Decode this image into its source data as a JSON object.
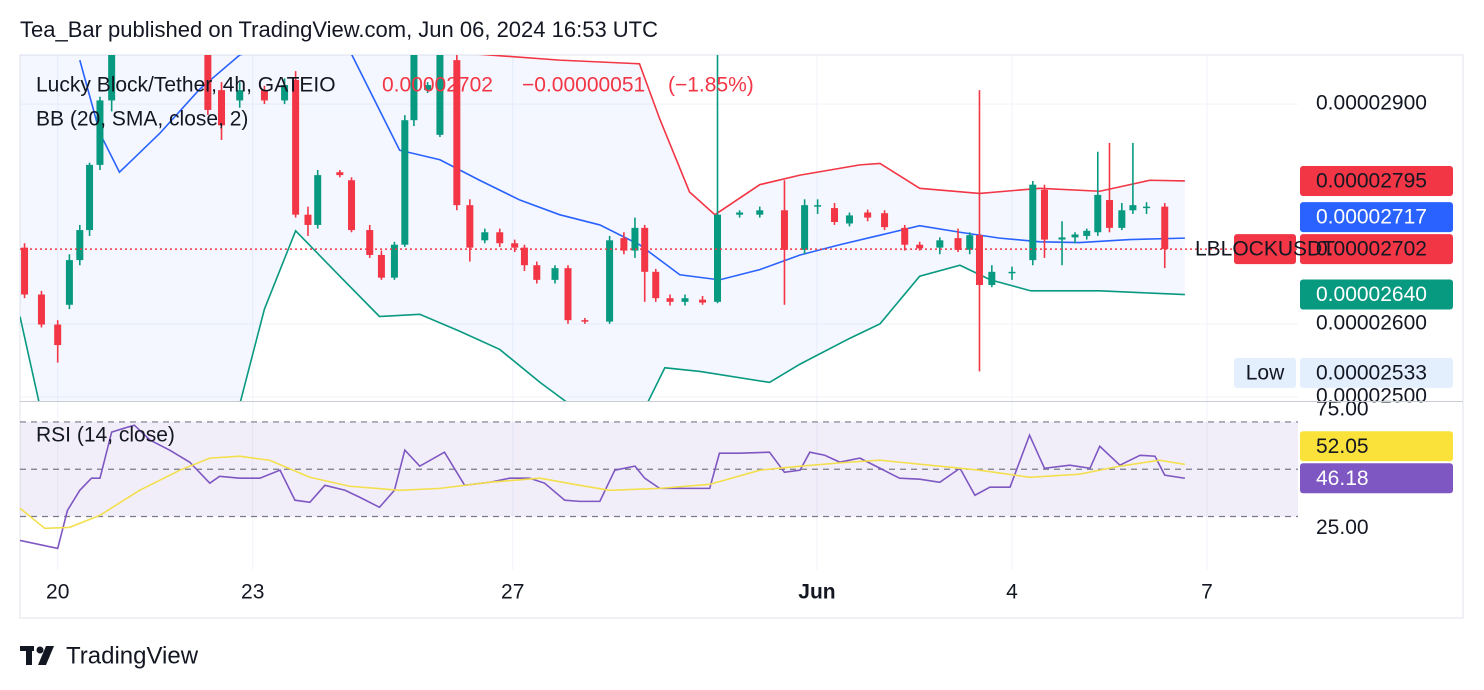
{
  "header": {
    "text": "Tea_Bar published on TradingView.com, Jun 06, 2024 16:53 UTC"
  },
  "footer": {
    "brand": "TradingView"
  },
  "chart_data": [
    {
      "type": "candlestick",
      "title": "Lucky Block/Tether, 4h, GATEIO",
      "last_price": {
        "value": 2.702e-05,
        "label": "0.00002702"
      },
      "change": {
        "value": -5.1e-07,
        "label": "−0.00000051"
      },
      "change_pct": {
        "value": -1.85,
        "label": "(−1.85%)"
      },
      "indicator": "BB (20, SMA, close, 2)",
      "up_color": "#089981",
      "down_color": "#f23645",
      "x": [
        19.49,
        19.75,
        20.0,
        20.18,
        20.34,
        20.49,
        20.65,
        20.83,
        21.18,
        21.57,
        21.95,
        22.31,
        22.52,
        22.8,
        23.18,
        23.49,
        23.66,
        23.85,
        24.0,
        24.34,
        24.52,
        24.8,
        24.98,
        25.18,
        25.34,
        25.48,
        25.69,
        25.88,
        26.14,
        26.34,
        26.57,
        26.8,
        27.03,
        27.18,
        27.37,
        27.65,
        27.85,
        28.11,
        28.49,
        28.71,
        28.88,
        29.03,
        29.2,
        29.42,
        29.65,
        29.92,
        30.15,
        30.49,
        30.8,
        31.18,
        31.49,
        31.69,
        31.95,
        32.18,
        32.46,
        32.72,
        33.03,
        33.26,
        33.57,
        33.85,
        34.03,
        34.18,
        34.37,
        34.68,
        35.0,
        35.18,
        35.45,
        35.65,
        35.83,
        36.0,
        36.18,
        36.37,
        36.54,
        36.75,
        37.03
      ],
      "open": [
        2.704e-05,
        2.64e-05,
        2.599e-05,
        2.626e-05,
        2.687e-05,
        2.728e-05,
        2.817e-05,
        2.905e-05,
        3e-05,
        3.04e-05,
        3.01e-05,
        2.99e-05,
        2.919e-05,
        2.905e-05,
        2.919e-05,
        2.905e-05,
        2.933e-05,
        2.749e-05,
        2.735e-05,
        2.807e-05,
        2.796e-05,
        2.728e-05,
        2.694e-05,
        2.663e-05,
        2.708e-05,
        2.878e-05,
        2.919e-05,
        2.858e-05,
        2.96e-05,
        2.762e-05,
        2.714e-05,
        2.725e-05,
        2.71e-05,
        2.704e-05,
        2.68e-05,
        2.66e-05,
        2.676e-05,
        2.605e-05,
        2.603e-05,
        2.717e-05,
        2.7e-05,
        2.731e-05,
        2.671e-05,
        2.635e-05,
        2.63e-05,
        2.633e-05,
        2.63e-05,
        2.749e-05,
        2.749e-05,
        2.755e-05,
        2.701e-05,
        2.762e-05,
        2.758e-05,
        2.737e-05,
        2.752e-05,
        2.751e-05,
        2.731e-05,
        2.708e-05,
        2.704e-05,
        2.717e-05,
        2.701e-05,
        2.721e-05,
        2.653e-05,
        2.67e-05,
        2.687e-05,
        2.783e-05,
        2.715e-05,
        2.718e-05,
        2.72e-05,
        2.725e-05,
        2.769e-05,
        2.731e-05,
        2.755e-05,
        2.758e-05,
        2.76e-05
      ],
      "high": [
        2.71e-05,
        2.645e-05,
        2.605e-05,
        2.695e-05,
        2.735e-05,
        2.82e-05,
        2.91e-05,
        2.99e-05,
        3.05e-05,
        3.06e-05,
        3.03e-05,
        3e-05,
        2.93e-05,
        2.93e-05,
        2.925e-05,
        2.935e-05,
        2.945e-05,
        2.76e-05,
        2.81e-05,
        2.81e-05,
        2.8e-05,
        2.735e-05,
        2.7e-05,
        2.712e-05,
        2.885e-05,
        2.99e-05,
        2.93e-05,
        2.99e-05,
        2.985e-05,
        2.77e-05,
        2.73e-05,
        2.73e-05,
        2.715e-05,
        2.708e-05,
        2.685e-05,
        2.68e-05,
        2.68e-05,
        2.608e-05,
        2.72e-05,
        2.725e-05,
        2.745e-05,
        2.735e-05,
        2.675e-05,
        2.64e-05,
        2.64e-05,
        2.638e-05,
        2.967e-05,
        2.755e-05,
        2.76e-05,
        2.796e-05,
        2.77e-05,
        2.77e-05,
        2.765e-05,
        2.752e-05,
        2.756e-05,
        2.755e-05,
        2.735e-05,
        2.712e-05,
        2.718e-05,
        2.73e-05,
        2.725e-05,
        2.919e-05,
        2.68e-05,
        2.678e-05,
        2.795e-05,
        2.79e-05,
        2.74e-05,
        2.725e-05,
        2.73e-05,
        2.835e-05,
        2.847e-05,
        2.765e-05,
        2.847e-05,
        2.766e-05,
        2.765e-05
      ],
      "low": [
        2.635e-05,
        2.595e-05,
        2.547e-05,
        2.62e-05,
        2.68e-05,
        2.72e-05,
        2.81e-05,
        2.89e-05,
        2.99e-05,
        3e-05,
        2.98e-05,
        2.885e-05,
        2.851e-05,
        2.895e-05,
        2.9e-05,
        2.9e-05,
        2.745e-05,
        2.72e-05,
        2.73e-05,
        2.8e-05,
        2.725e-05,
        2.69e-05,
        2.66e-05,
        2.66e-05,
        2.705e-05,
        2.87e-05,
        2.915e-05,
        2.855e-05,
        2.755e-05,
        2.685e-05,
        2.71e-05,
        2.705e-05,
        2.698e-05,
        2.672e-05,
        2.655e-05,
        2.655e-05,
        2.6e-05,
        2.6e-05,
        2.6e-05,
        2.695e-05,
        2.69e-05,
        2.63e-05,
        2.63e-05,
        2.625e-05,
        2.625e-05,
        2.626e-05,
        2.628e-05,
        2.745e-05,
        2.745e-05,
        2.626e-05,
        2.695e-05,
        2.75e-05,
        2.735e-05,
        2.733e-05,
        2.74e-05,
        2.728e-05,
        2.7e-05,
        2.7e-05,
        2.695e-05,
        2.698e-05,
        2.695e-05,
        2.535e-05,
        2.65e-05,
        2.66e-05,
        2.68e-05,
        2.69e-05,
        2.68e-05,
        2.71e-05,
        2.715e-05,
        2.72e-05,
        2.725e-05,
        2.728e-05,
        2.75e-05,
        2.75e-05,
        2.676e-05
      ],
      "close": [
        2.64e-05,
        2.599e-05,
        2.571e-05,
        2.687e-05,
        2.728e-05,
        2.817e-05,
        2.905e-05,
        2.98e-05,
        3.04e-05,
        3.01e-05,
        3e-05,
        2.892e-05,
        2.871e-05,
        2.919e-05,
        2.905e-05,
        2.926e-05,
        2.749e-05,
        2.735e-05,
        2.803e-05,
        2.803e-05,
        2.728e-05,
        2.694e-05,
        2.663e-05,
        2.708e-05,
        2.878e-05,
        2.967e-05,
        2.926e-05,
        2.967e-05,
        2.762e-05,
        2.704e-05,
        2.725e-05,
        2.71e-05,
        2.704e-05,
        2.68e-05,
        2.66e-05,
        2.676e-05,
        2.605e-05,
        2.603e-05,
        2.714e-05,
        2.7e-05,
        2.731e-05,
        2.671e-05,
        2.635e-05,
        2.63e-05,
        2.635e-05,
        2.629e-05,
        2.749e-05,
        2.752e-05,
        2.755e-05,
        2.701e-05,
        2.762e-05,
        2.762e-05,
        2.739e-05,
        2.748e-05,
        2.745e-05,
        2.732e-05,
        2.708e-05,
        2.703e-05,
        2.714e-05,
        2.701e-05,
        2.721e-05,
        2.653e-05,
        2.671e-05,
        2.671e-05,
        2.79e-05,
        2.715e-05,
        2.718e-05,
        2.722e-05,
        2.727e-05,
        2.776e-05,
        2.731e-05,
        2.755e-05,
        2.762e-05,
        2.76e-05,
        2.702e-05
      ],
      "overlays": [
        {
          "color": "#f23645",
          "x": [
            25.57,
            26.18,
            27.72,
            28.95,
            29.26,
            29.72,
            30.11,
            30.8,
            31.42,
            32.34,
            32.65,
            33.26,
            34.18,
            35.11,
            36.03,
            36.8,
            37.34
          ],
          "values": [
            3e-05,
            2.97e-05,
            2.96e-05,
            2.955e-05,
            2.88e-05,
            2.78e-05,
            2.749e-05,
            2.79e-05,
            2.803e-05,
            2.817e-05,
            2.819e-05,
            2.785e-05,
            2.778e-05,
            2.785e-05,
            2.781e-05,
            2.796e-05,
            2.795e-05
          ]
        },
        {
          "color": "#2962ff",
          "x": [
            20.34,
            20.65,
            20.95,
            21.57,
            22.18,
            22.8,
            24.34,
            25.26,
            25.88,
            26.49,
            27.11,
            27.72,
            28.34,
            28.95,
            29.57,
            30.18,
            30.8,
            31.42,
            32.03,
            32.65,
            33.26,
            33.88,
            34.49,
            35.11,
            35.72,
            36.49,
            37.34
          ],
          "values": [
            2.96e-05,
            2.86e-05,
            2.807e-05,
            2.86e-05,
            2.92e-05,
            2.967e-05,
            3e-05,
            2.837e-05,
            2.824e-05,
            2.796e-05,
            2.769e-05,
            2.749e-05,
            2.735e-05,
            2.708e-05,
            2.667e-05,
            2.66e-05,
            2.674e-05,
            2.694e-05,
            2.708e-05,
            2.721e-05,
            2.734e-05,
            2.725e-05,
            2.717e-05,
            2.712e-05,
            2.711e-05,
            2.715e-05,
            2.717e-05
          ]
        },
        {
          "color": "#089981",
          "x": [
            19.42,
            19.72,
            22.8,
            23.18,
            23.66,
            24.34,
            24.95,
            25.57,
            26.18,
            26.8,
            27.42,
            28.03,
            28.34,
            28.95,
            29.34,
            29.88,
            30.95,
            31.42,
            32.18,
            32.65,
            33.26,
            33.88,
            34.35,
            34.97,
            36.03,
            36.8,
            37.34
          ],
          "values": [
            2.61e-05,
            2.49e-05,
            2.49e-05,
            2.62e-05,
            2.727e-05,
            2.665e-05,
            2.61e-05,
            2.613e-05,
            2.59e-05,
            2.565e-05,
            2.52e-05,
            2.48e-05,
            2.455e-05,
            2.47e-05,
            2.54e-05,
            2.535e-05,
            2.52e-05,
            2.545e-05,
            2.58e-05,
            2.6e-05,
            2.665e-05,
            2.68e-05,
            2.66e-05,
            2.645e-05,
            2.645e-05,
            2.642e-05,
            2.64e-05
          ]
        }
      ],
      "price_tags": [
        {
          "value": 2.795e-05,
          "label": "0.00002795",
          "color": "#f23645"
        },
        {
          "value": 2.717e-05,
          "label": "0.00002717",
          "color": "#2962ff"
        },
        {
          "name": "LBLOCKUSDT",
          "value": 2.702e-05,
          "label": "0.00002702",
          "color": "#f23645"
        },
        {
          "value": 2.64e-05,
          "label": "0.00002640",
          "color": "#089981"
        },
        {
          "name": "Low",
          "value": 2.533e-05,
          "label": "0.00002533",
          "color": "#e3effd"
        }
      ],
      "xlim": [
        19.42,
        39.08
      ],
      "ylim": [
        2.496e-05,
        2.967e-05
      ],
      "xticks": [
        20,
        23,
        27,
        {
          "value": 31.68,
          "label": "Jun"
        },
        {
          "value": 34.68,
          "label": "4"
        },
        {
          "value": 37.68,
          "label": "7"
        }
      ],
      "yticks": [
        {
          "value": 2.9e-05,
          "label": "0.00002900"
        },
        {
          "value": 2.6e-05,
          "label": "0.00002600"
        },
        {
          "value": 2.5e-05,
          "label": "0.00002500"
        }
      ],
      "grid": true
    },
    {
      "type": "line",
      "title": "RSI (14, close)",
      "lines": [
        {
          "color": "#7e57c2",
          "x": [
            19.42,
            20.0,
            20.15,
            20.34,
            20.52,
            20.65,
            20.83,
            21.03,
            21.18,
            21.42,
            21.72,
            22.03,
            22.34,
            22.49,
            22.8,
            23.11,
            23.42,
            23.65,
            23.88,
            24.11,
            24.42,
            24.65,
            24.95,
            25.18,
            25.34,
            25.57,
            25.95,
            26.26,
            26.65,
            26.95,
            27.26,
            27.49,
            27.8,
            28.03,
            28.34,
            28.57,
            28.88,
            29.03,
            29.26,
            29.57,
            30.03,
            30.18,
            30.49,
            30.95,
            31.18,
            31.42,
            31.57,
            31.8,
            32.03,
            32.34,
            32.65,
            32.95,
            33.26,
            33.57,
            33.88,
            34.11,
            34.34,
            34.65,
            34.95,
            35.18,
            35.57,
            35.88,
            36.03,
            36.34,
            36.65,
            36.88,
            37.03,
            37.34
          ],
          "values": [
            19.9,
            16.5,
            32.6,
            41.1,
            46.2,
            46.2,
            65.7,
            67.4,
            68.6,
            62.3,
            58.1,
            53.0,
            44.1,
            47.0,
            46.2,
            46.2,
            49.6,
            36.9,
            36.0,
            43.2,
            41.1,
            38.1,
            33.9,
            41.1,
            58.1,
            51.3,
            57.2,
            43.2,
            44.5,
            46.2,
            46.2,
            44.1,
            36.9,
            36.4,
            36.4,
            49.6,
            51.3,
            46.2,
            41.9,
            41.9,
            41.9,
            56.8,
            56.8,
            57.2,
            48.7,
            49.6,
            57.2,
            55.9,
            53.0,
            54.7,
            50.4,
            46.2,
            45.8,
            44.5,
            50.4,
            39.0,
            42.4,
            42.4,
            64.4,
            50.4,
            51.7,
            50.4,
            59.7,
            51.7,
            55.9,
            55.5,
            47.5,
            46.18
          ]
        },
        {
          "color": "#f3df4d",
          "x": [
            19.42,
            19.8,
            20.18,
            20.65,
            21.26,
            21.88,
            22.34,
            22.8,
            23.26,
            23.88,
            24.49,
            25.26,
            25.88,
            26.65,
            27.42,
            28.03,
            28.49,
            29.26,
            30.03,
            30.8,
            31.42,
            32.18,
            32.65,
            33.57,
            34.18,
            34.95,
            35.72,
            36.34,
            36.95,
            37.34
          ],
          "values": [
            33.5,
            25.0,
            25.4,
            30.5,
            41.1,
            49.6,
            54.7,
            55.5,
            53.8,
            46.6,
            42.8,
            41.1,
            41.9,
            44.5,
            46.2,
            43.2,
            41.1,
            41.9,
            43.6,
            49.6,
            51.3,
            53.0,
            53.8,
            51.3,
            49.6,
            46.6,
            47.9,
            51.3,
            53.8,
            52.05
          ]
        }
      ],
      "hlines": [
        70,
        50,
        30
      ],
      "price_tags": [
        {
          "value": 52.05,
          "label": "52.05",
          "color": "#fbe23a"
        },
        {
          "value": 46.18,
          "label": "46.18",
          "color": "#7e57c2"
        }
      ],
      "xlim": [
        19.42,
        39.08
      ],
      "ylim": [
        15,
        78
      ],
      "yticks": [
        {
          "value": 75,
          "label": "75.00"
        },
        {
          "value": 25,
          "label": "25.00"
        }
      ]
    }
  ]
}
